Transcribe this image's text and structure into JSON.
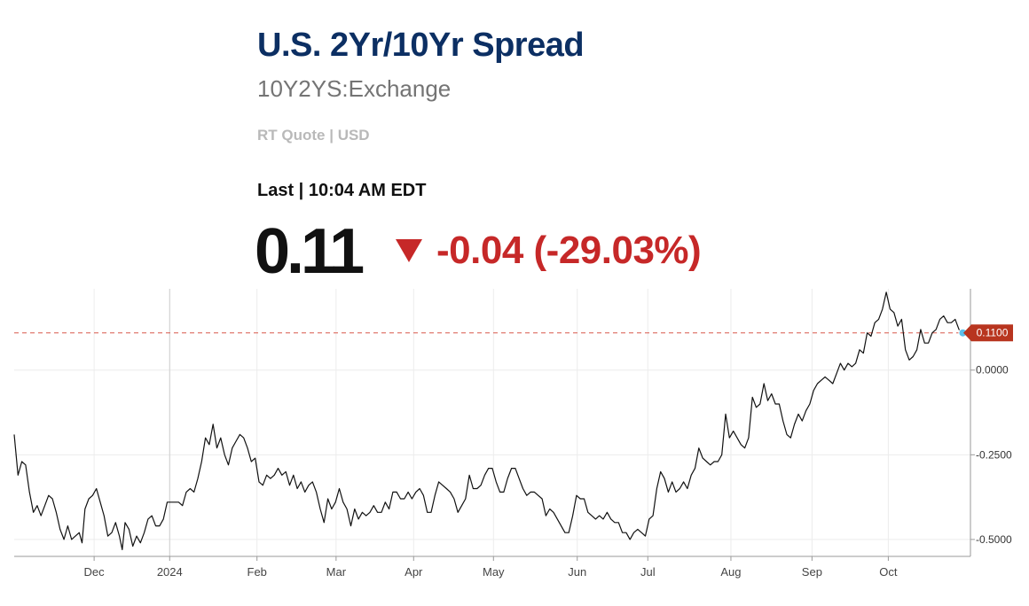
{
  "header": {
    "title": "U.S. 2Yr/10Yr Spread",
    "symbol": "10Y2YS:Exchange",
    "quote_type": "RT Quote | USD",
    "last_label": "Last | 10:04 AM EDT",
    "price": "0.11",
    "change": "-0.04 (-29.03%)"
  },
  "colors": {
    "title": "#0c2f63",
    "negative": "#c62828",
    "line": "#111111",
    "marker": "#5bc0eb",
    "current_tag": "#b8351f"
  },
  "chart_data": {
    "type": "line",
    "title": "",
    "xlabel": "",
    "ylabel": "",
    "grid": true,
    "ylim": [
      -0.55,
      0.24
    ],
    "yticks": [
      0.0,
      -0.25,
      -0.5
    ],
    "ytick_labels": [
      "0.0000",
      "-0.2500",
      "-0.5000"
    ],
    "xticks": [
      {
        "label": "Dec",
        "t": 0.0836
      },
      {
        "label": "2024",
        "t": 0.1626
      },
      {
        "label": "Feb",
        "t": 0.2539
      },
      {
        "label": "Mar",
        "t": 0.3366
      },
      {
        "label": "Apr",
        "t": 0.4177
      },
      {
        "label": "May",
        "t": 0.5012
      },
      {
        "label": "Jun",
        "t": 0.5888
      },
      {
        "label": "Jul",
        "t": 0.6626
      },
      {
        "label": "Aug",
        "t": 0.7495
      },
      {
        "label": "Sep",
        "t": 0.8343
      },
      {
        "label": "Oct",
        "t": 0.9141
      }
    ],
    "year_divider_t": 0.1626,
    "current_value": 0.11,
    "current_label": "0.1100",
    "series": [
      {
        "name": "U.S. 2Yr/10Yr Spread",
        "points": [
          [
            0.0,
            -0.19
          ],
          [
            0.004,
            -0.31
          ],
          [
            0.008,
            -0.27
          ],
          [
            0.012,
            -0.28
          ],
          [
            0.016,
            -0.36
          ],
          [
            0.02,
            -0.42
          ],
          [
            0.024,
            -0.4
          ],
          [
            0.028,
            -0.43
          ],
          [
            0.032,
            -0.4
          ],
          [
            0.036,
            -0.37
          ],
          [
            0.04,
            -0.38
          ],
          [
            0.044,
            -0.42
          ],
          [
            0.048,
            -0.47
          ],
          [
            0.052,
            -0.5
          ],
          [
            0.056,
            -0.46
          ],
          [
            0.06,
            -0.5
          ],
          [
            0.064,
            -0.49
          ],
          [
            0.068,
            -0.48
          ],
          [
            0.071,
            -0.51
          ],
          [
            0.074,
            -0.41
          ],
          [
            0.078,
            -0.38
          ],
          [
            0.082,
            -0.37
          ],
          [
            0.086,
            -0.35
          ],
          [
            0.09,
            -0.39
          ],
          [
            0.094,
            -0.43
          ],
          [
            0.098,
            -0.49
          ],
          [
            0.102,
            -0.48
          ],
          [
            0.106,
            -0.45
          ],
          [
            0.11,
            -0.49
          ],
          [
            0.113,
            -0.53
          ],
          [
            0.116,
            -0.45
          ],
          [
            0.12,
            -0.47
          ],
          [
            0.124,
            -0.52
          ],
          [
            0.128,
            -0.49
          ],
          [
            0.132,
            -0.51
          ],
          [
            0.136,
            -0.48
          ],
          [
            0.14,
            -0.44
          ],
          [
            0.144,
            -0.43
          ],
          [
            0.148,
            -0.46
          ],
          [
            0.152,
            -0.46
          ],
          [
            0.156,
            -0.44
          ],
          [
            0.16,
            -0.39
          ],
          [
            0.163,
            -0.39
          ],
          [
            0.168,
            -0.39
          ],
          [
            0.172,
            -0.39
          ],
          [
            0.176,
            -0.4
          ],
          [
            0.18,
            -0.36
          ],
          [
            0.184,
            -0.35
          ],
          [
            0.188,
            -0.36
          ],
          [
            0.192,
            -0.32
          ],
          [
            0.196,
            -0.27
          ],
          [
            0.2,
            -0.2
          ],
          [
            0.204,
            -0.22
          ],
          [
            0.208,
            -0.16
          ],
          [
            0.212,
            -0.23
          ],
          [
            0.216,
            -0.2
          ],
          [
            0.22,
            -0.25
          ],
          [
            0.224,
            -0.28
          ],
          [
            0.228,
            -0.23
          ],
          [
            0.232,
            -0.21
          ],
          [
            0.236,
            -0.19
          ],
          [
            0.24,
            -0.2
          ],
          [
            0.244,
            -0.23
          ],
          [
            0.248,
            -0.27
          ],
          [
            0.252,
            -0.26
          ],
          [
            0.256,
            -0.33
          ],
          [
            0.26,
            -0.34
          ],
          [
            0.264,
            -0.31
          ],
          [
            0.268,
            -0.32
          ],
          [
            0.272,
            -0.31
          ],
          [
            0.276,
            -0.29
          ],
          [
            0.28,
            -0.31
          ],
          [
            0.284,
            -0.3
          ],
          [
            0.288,
            -0.34
          ],
          [
            0.292,
            -0.31
          ],
          [
            0.296,
            -0.35
          ],
          [
            0.3,
            -0.33
          ],
          [
            0.304,
            -0.36
          ],
          [
            0.308,
            -0.34
          ],
          [
            0.312,
            -0.33
          ],
          [
            0.316,
            -0.36
          ],
          [
            0.32,
            -0.41
          ],
          [
            0.324,
            -0.45
          ],
          [
            0.328,
            -0.38
          ],
          [
            0.332,
            -0.41
          ],
          [
            0.336,
            -0.39
          ],
          [
            0.34,
            -0.35
          ],
          [
            0.344,
            -0.39
          ],
          [
            0.348,
            -0.41
          ],
          [
            0.352,
            -0.46
          ],
          [
            0.356,
            -0.41
          ],
          [
            0.36,
            -0.44
          ],
          [
            0.364,
            -0.42
          ],
          [
            0.368,
            -0.43
          ],
          [
            0.372,
            -0.42
          ],
          [
            0.376,
            -0.4
          ],
          [
            0.38,
            -0.42
          ],
          [
            0.384,
            -0.42
          ],
          [
            0.388,
            -0.39
          ],
          [
            0.392,
            -0.41
          ],
          [
            0.396,
            -0.36
          ],
          [
            0.4,
            -0.36
          ],
          [
            0.404,
            -0.38
          ],
          [
            0.408,
            -0.38
          ],
          [
            0.412,
            -0.36
          ],
          [
            0.416,
            -0.38
          ],
          [
            0.42,
            -0.36
          ],
          [
            0.424,
            -0.35
          ],
          [
            0.428,
            -0.37
          ],
          [
            0.432,
            -0.42
          ],
          [
            0.436,
            -0.42
          ],
          [
            0.44,
            -0.37
          ],
          [
            0.444,
            -0.33
          ],
          [
            0.448,
            -0.34
          ],
          [
            0.452,
            -0.35
          ],
          [
            0.456,
            -0.36
          ],
          [
            0.46,
            -0.38
          ],
          [
            0.464,
            -0.42
          ],
          [
            0.468,
            -0.4
          ],
          [
            0.472,
            -0.38
          ],
          [
            0.476,
            -0.31
          ],
          [
            0.48,
            -0.35
          ],
          [
            0.484,
            -0.35
          ],
          [
            0.488,
            -0.34
          ],
          [
            0.492,
            -0.31
          ],
          [
            0.496,
            -0.29
          ],
          [
            0.5,
            -0.29
          ],
          [
            0.504,
            -0.33
          ],
          [
            0.508,
            -0.36
          ],
          [
            0.512,
            -0.36
          ],
          [
            0.516,
            -0.32
          ],
          [
            0.52,
            -0.29
          ],
          [
            0.524,
            -0.29
          ],
          [
            0.528,
            -0.32
          ],
          [
            0.532,
            -0.35
          ],
          [
            0.536,
            -0.37
          ],
          [
            0.54,
            -0.36
          ],
          [
            0.544,
            -0.36
          ],
          [
            0.548,
            -0.37
          ],
          [
            0.552,
            -0.38
          ],
          [
            0.556,
            -0.43
          ],
          [
            0.56,
            -0.41
          ],
          [
            0.564,
            -0.42
          ],
          [
            0.568,
            -0.44
          ],
          [
            0.572,
            -0.46
          ],
          [
            0.576,
            -0.48
          ],
          [
            0.58,
            -0.48
          ],
          [
            0.584,
            -0.43
          ],
          [
            0.588,
            -0.37
          ],
          [
            0.592,
            -0.38
          ],
          [
            0.596,
            -0.38
          ],
          [
            0.6,
            -0.42
          ],
          [
            0.604,
            -0.43
          ],
          [
            0.608,
            -0.44
          ],
          [
            0.612,
            -0.43
          ],
          [
            0.616,
            -0.44
          ],
          [
            0.62,
            -0.42
          ],
          [
            0.624,
            -0.44
          ],
          [
            0.628,
            -0.45
          ],
          [
            0.632,
            -0.45
          ],
          [
            0.636,
            -0.48
          ],
          [
            0.64,
            -0.48
          ],
          [
            0.644,
            -0.5
          ],
          [
            0.648,
            -0.48
          ],
          [
            0.652,
            -0.47
          ],
          [
            0.656,
            -0.48
          ],
          [
            0.66,
            -0.49
          ],
          [
            0.664,
            -0.44
          ],
          [
            0.668,
            -0.43
          ],
          [
            0.672,
            -0.35
          ],
          [
            0.676,
            -0.3
          ],
          [
            0.68,
            -0.32
          ],
          [
            0.684,
            -0.36
          ],
          [
            0.688,
            -0.33
          ],
          [
            0.692,
            -0.36
          ],
          [
            0.696,
            -0.35
          ],
          [
            0.7,
            -0.33
          ],
          [
            0.704,
            -0.35
          ],
          [
            0.708,
            -0.31
          ],
          [
            0.712,
            -0.29
          ],
          [
            0.716,
            -0.23
          ],
          [
            0.72,
            -0.26
          ],
          [
            0.724,
            -0.27
          ],
          [
            0.728,
            -0.28
          ],
          [
            0.732,
            -0.27
          ],
          [
            0.736,
            -0.27
          ],
          [
            0.74,
            -0.25
          ],
          [
            0.744,
            -0.13
          ],
          [
            0.748,
            -0.2
          ],
          [
            0.752,
            -0.18
          ],
          [
            0.756,
            -0.2
          ],
          [
            0.76,
            -0.22
          ],
          [
            0.764,
            -0.23
          ],
          [
            0.768,
            -0.2
          ],
          [
            0.772,
            -0.08
          ],
          [
            0.776,
            -0.11
          ],
          [
            0.78,
            -0.1
          ],
          [
            0.784,
            -0.04
          ],
          [
            0.788,
            -0.09
          ],
          [
            0.792,
            -0.07
          ],
          [
            0.796,
            -0.1
          ],
          [
            0.8,
            -0.1
          ],
          [
            0.804,
            -0.15
          ],
          [
            0.808,
            -0.19
          ],
          [
            0.812,
            -0.2
          ],
          [
            0.816,
            -0.16
          ],
          [
            0.82,
            -0.13
          ],
          [
            0.824,
            -0.15
          ],
          [
            0.828,
            -0.12
          ],
          [
            0.832,
            -0.1
          ],
          [
            0.836,
            -0.06
          ],
          [
            0.84,
            -0.04
          ],
          [
            0.844,
            -0.03
          ],
          [
            0.848,
            -0.02
          ],
          [
            0.852,
            -0.03
          ],
          [
            0.856,
            -0.04
          ],
          [
            0.86,
            -0.01
          ],
          [
            0.864,
            0.02
          ],
          [
            0.868,
            0.0
          ],
          [
            0.872,
            0.02
          ],
          [
            0.876,
            0.01
          ],
          [
            0.88,
            0.02
          ],
          [
            0.884,
            0.06
          ],
          [
            0.888,
            0.05
          ],
          [
            0.892,
            0.11
          ],
          [
            0.896,
            0.1
          ],
          [
            0.9,
            0.14
          ],
          [
            0.904,
            0.15
          ],
          [
            0.908,
            0.18
          ],
          [
            0.912,
            0.23
          ],
          [
            0.916,
            0.18
          ],
          [
            0.92,
            0.17
          ],
          [
            0.924,
            0.13
          ],
          [
            0.928,
            0.15
          ],
          [
            0.932,
            0.06
          ],
          [
            0.936,
            0.03
          ],
          [
            0.94,
            0.04
          ],
          [
            0.944,
            0.06
          ],
          [
            0.948,
            0.12
          ],
          [
            0.952,
            0.08
          ],
          [
            0.956,
            0.08
          ],
          [
            0.96,
            0.11
          ],
          [
            0.964,
            0.12
          ],
          [
            0.968,
            0.15
          ],
          [
            0.972,
            0.16
          ],
          [
            0.976,
            0.14
          ],
          [
            0.98,
            0.14
          ],
          [
            0.984,
            0.15
          ],
          [
            0.988,
            0.12
          ],
          [
            0.992,
            0.11
          ]
        ]
      }
    ]
  }
}
